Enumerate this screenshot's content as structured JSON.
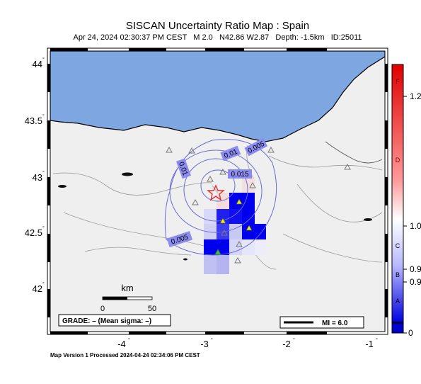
{
  "header": {
    "title": "SISCAN Uncertainty Ratio Map : Spain",
    "subtitle": "Apr 24, 2024 02:30:37 PM CEST   M 2.0   N42.86 W2.87   Depth: -1.5km   ID:25011"
  },
  "map": {
    "lat_labels": [
      "44",
      "43.5",
      "43",
      "42.5",
      "42"
    ],
    "lon_labels": [
      "-4",
      "-3",
      "-2",
      "-1"
    ],
    "contour_labels": [
      "0.005",
      "0.01",
      "0.01",
      "0.015",
      "0.005"
    ],
    "scale_bar": {
      "unit": "km",
      "ticks": [
        "0",
        "50"
      ]
    },
    "grade_box": "GRADE: – (Mean sigma: –)",
    "mi_legend": "MI = 6.0",
    "colors": {
      "sea": "#7ea6e0",
      "land": "#efefef",
      "high": "#0000ee",
      "star": "#e03030"
    }
  },
  "colorbar": {
    "letters": [
      "F",
      "D",
      "C",
      "B",
      "A"
    ],
    "values": [
      "1.2",
      "1.0",
      "0.9",
      "0.9",
      "0"
    ]
  },
  "footer": "Map Version 1 Processed 2024-04-24 02:34:06 PM CEST"
}
